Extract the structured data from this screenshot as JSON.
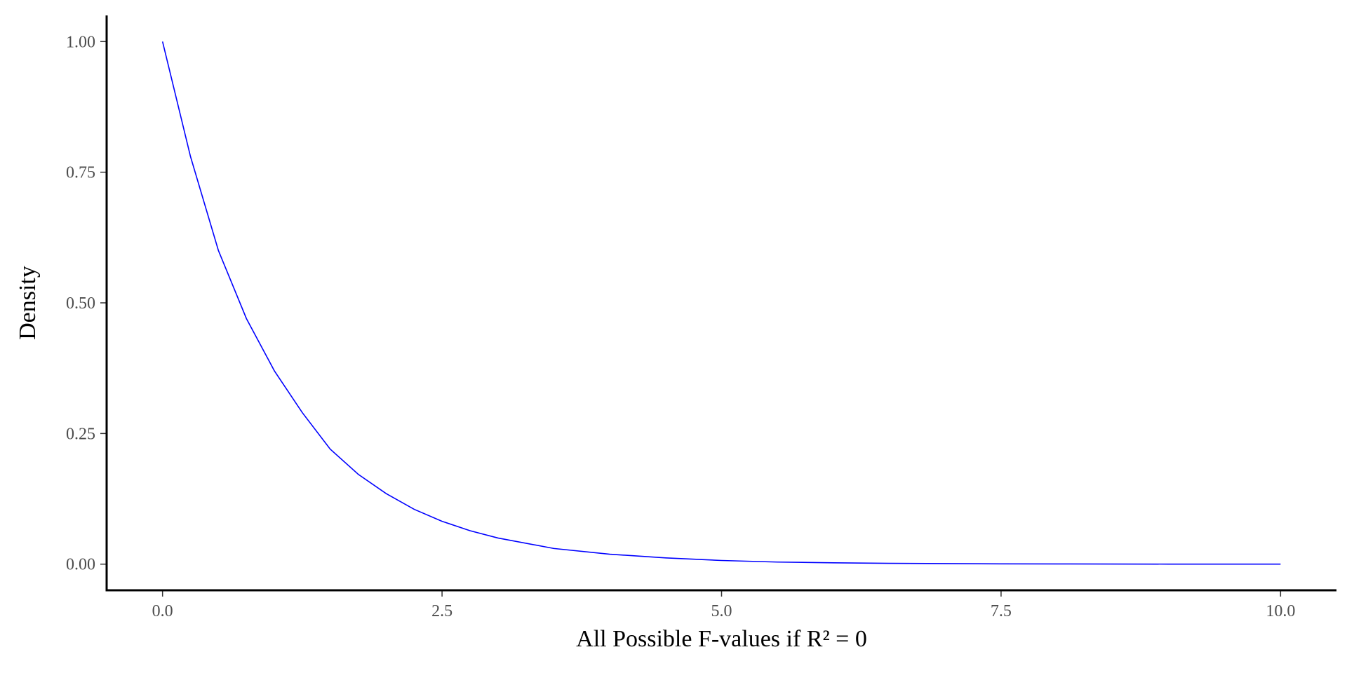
{
  "chart_data": {
    "type": "line",
    "title": "",
    "xlabel": "All Possible F-values if R² = 0",
    "ylabel": "Density",
    "xlim": [
      -0.5,
      10.5
    ],
    "ylim": [
      -0.05,
      1.05
    ],
    "x_ticks": [
      0,
      2.5,
      5,
      7.5,
      10
    ],
    "x_tick_labels": [
      "0.0",
      "2.5",
      "5.0",
      "7.5",
      "10.0"
    ],
    "y_ticks": [
      0,
      0.25,
      0.5,
      0.75,
      1
    ],
    "y_tick_labels": [
      "0.00",
      "0.25",
      "0.50",
      "0.75",
      "1.00"
    ],
    "grid": false,
    "series": [
      {
        "color": "#0000ff",
        "x": [
          0,
          0.25,
          0.5,
          0.75,
          1,
          1.25,
          1.5,
          1.75,
          2,
          2.25,
          2.5,
          2.75,
          3,
          3.5,
          4,
          4.5,
          5,
          5.5,
          6,
          6.5,
          7,
          7.5,
          8,
          8.5,
          9,
          9.5,
          10
        ],
        "y": [
          1.0,
          0.78,
          0.6,
          0.47,
          0.37,
          0.29,
          0.22,
          0.172,
          0.135,
          0.105,
          0.082,
          0.064,
          0.05,
          0.03,
          0.019,
          0.012,
          0.007,
          0.004,
          0.0026,
          0.0016,
          0.001,
          0.0006,
          0.0004,
          0.0002,
          0.0001,
          0.0001,
          0.0
        ]
      }
    ]
  }
}
